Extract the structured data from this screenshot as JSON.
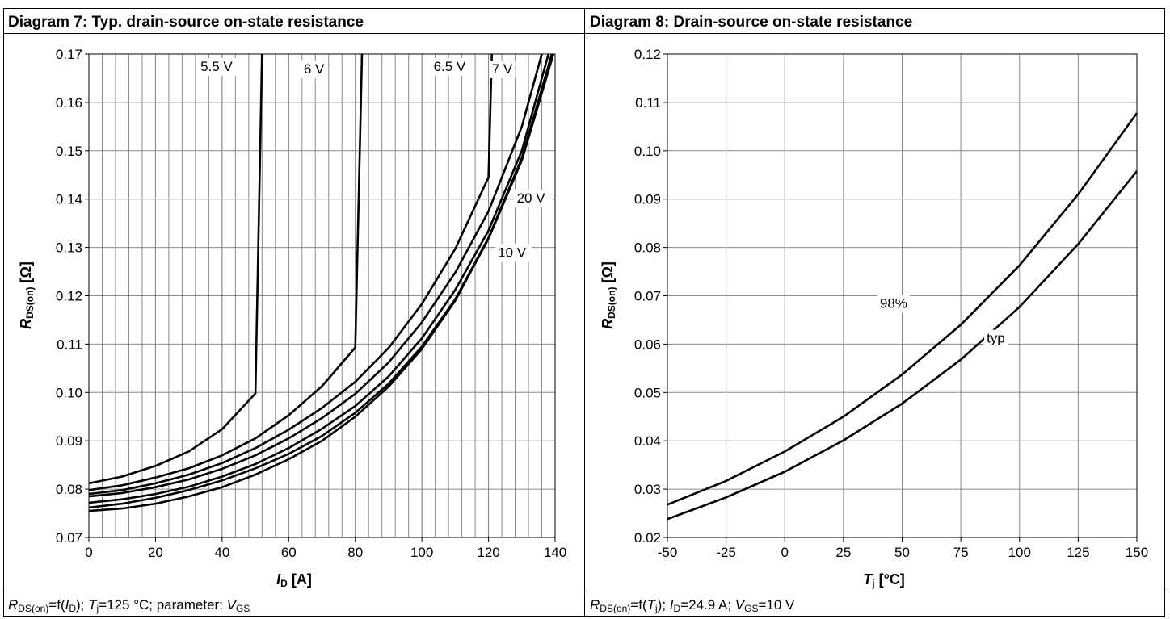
{
  "diagrams": [
    {
      "title": "Diagram 7: Typ. drain-source on-state resistance",
      "caption": "R_DS(on)=f(I_D); T_j=125 °C; parameter: V_GS",
      "caption_parts": {
        "a": "R",
        "a_sub": "DS(on)",
        "b": "=f(",
        "c": "I",
        "c_sub": "D",
        "d": "); ",
        "e": "T",
        "e_sub": "j",
        "f": "=125 °C; parameter: ",
        "g": "V",
        "g_sub": "GS"
      },
      "xlabel": {
        "main": "I",
        "sub": "D",
        "unit": " [A]"
      },
      "ylabel": {
        "main": "R",
        "sub": "DS(on)",
        "unit": " [Ω]"
      }
    },
    {
      "title": "Diagram 8: Drain-source on-state resistance",
      "caption": "R_DS(on)=f(T_j); I_D=24.9 A; V_GS=10 V",
      "caption_parts": {
        "a": "R",
        "a_sub": "DS(on)",
        "b": "=f(",
        "c": "T",
        "c_sub": "j",
        "d": "); ",
        "e": "I",
        "e_sub": "D",
        "f": "=24.9 A; ",
        "g": "V",
        "g_sub": "GS",
        "h": "=10 V"
      },
      "xlabel": {
        "main": "T",
        "sub": "j",
        "unit": " [°C]"
      },
      "ylabel": {
        "main": "R",
        "sub": "DS(on)",
        "unit": " [Ω]"
      }
    }
  ],
  "chart_data": [
    {
      "type": "line",
      "title": "Diagram 7: Typ. drain-source on-state resistance",
      "xlabel": "I_D [A]",
      "ylabel": "R_DS(on) [Ω]",
      "xlim": [
        0,
        140
      ],
      "ylim": [
        0.07,
        0.17
      ],
      "xticks": [
        "0",
        "20",
        "40",
        "60",
        "80",
        "100",
        "120",
        "140"
      ],
      "yticks": [
        "0.07",
        "0.08",
        "0.09",
        "0.10",
        "0.11",
        "0.12",
        "0.13",
        "0.14",
        "0.15",
        "0.16",
        "0.17"
      ],
      "grid": true,
      "minor_x_step": 4,
      "series": [
        {
          "name": "5.5 V",
          "x": [
            0,
            10,
            20,
            30,
            40,
            50,
            52
          ],
          "y": [
            0.0812,
            0.0826,
            0.0848,
            0.0878,
            0.0924,
            0.0998,
            0.17
          ]
        },
        {
          "name": "6 V",
          "x": [
            0,
            10,
            20,
            30,
            40,
            50,
            60,
            70,
            80,
            82
          ],
          "y": [
            0.0798,
            0.0808,
            0.0824,
            0.0843,
            0.087,
            0.0905,
            0.0953,
            0.1013,
            0.1093,
            0.17
          ]
        },
        {
          "name": "6.5 V",
          "x": [
            0,
            10,
            20,
            30,
            40,
            50,
            60,
            70,
            80,
            90,
            100,
            110,
            120,
            121
          ],
          "y": [
            0.079,
            0.0798,
            0.0812,
            0.083,
            0.0854,
            0.0885,
            0.0923,
            0.0968,
            0.1022,
            0.1092,
            0.1183,
            0.1297,
            0.1445,
            0.17
          ]
        },
        {
          "name": "7 V",
          "x": [
            0,
            10,
            20,
            30,
            40,
            50,
            60,
            70,
            80,
            90,
            100,
            110,
            120,
            130,
            136
          ],
          "y": [
            0.0785,
            0.0792,
            0.0804,
            0.082,
            0.0842,
            0.087,
            0.0905,
            0.0947,
            0.0997,
            0.1062,
            0.1145,
            0.1248,
            0.1375,
            0.155,
            0.17
          ]
        },
        {
          "name": "",
          "x": [
            0,
            10,
            20,
            30,
            40,
            50,
            60,
            70,
            80,
            90,
            100,
            110,
            120,
            130,
            138
          ],
          "y": [
            0.0772,
            0.0779,
            0.079,
            0.0805,
            0.0826,
            0.0852,
            0.0885,
            0.0925,
            0.0972,
            0.1033,
            0.1112,
            0.1212,
            0.1335,
            0.15,
            0.17
          ]
        },
        {
          "name": "20 V",
          "x": [
            0,
            10,
            20,
            30,
            40,
            50,
            60,
            70,
            80,
            90,
            100,
            110,
            120,
            130,
            139
          ],
          "y": [
            0.0762,
            0.077,
            0.0782,
            0.0798,
            0.0818,
            0.0843,
            0.0873,
            0.091,
            0.0958,
            0.1018,
            0.1095,
            0.1193,
            0.132,
            0.1485,
            0.17
          ]
        },
        {
          "name": "10 V",
          "x": [
            0,
            10,
            20,
            30,
            40,
            50,
            60,
            70,
            80,
            90,
            100,
            110,
            120,
            130,
            139.5
          ],
          "y": [
            0.0755,
            0.076,
            0.077,
            0.0785,
            0.0804,
            0.083,
            0.0862,
            0.09,
            0.095,
            0.1012,
            0.109,
            0.119,
            0.1318,
            0.148,
            0.17
          ]
        }
      ],
      "curve_labels": [
        "5.5 V",
        "6 V",
        "6.5 V",
        "7 V",
        "20 V",
        "10 V"
      ]
    },
    {
      "type": "line",
      "title": "Diagram 8: Drain-source on-state resistance",
      "xlabel": "T_j [°C]",
      "ylabel": "R_DS(on) [Ω]",
      "xlim": [
        -50,
        150
      ],
      "ylim": [
        0.02,
        0.12
      ],
      "xticks": [
        "-50",
        "-25",
        "0",
        "25",
        "50",
        "75",
        "100",
        "125",
        "150"
      ],
      "yticks": [
        "0.02",
        "0.03",
        "0.04",
        "0.05",
        "0.06",
        "0.07",
        "0.08",
        "0.09",
        "0.10",
        "0.11",
        "0.12"
      ],
      "grid": true,
      "series": [
        {
          "name": "98%",
          "x": [
            -50,
            -25,
            0,
            25,
            50,
            75,
            100,
            125,
            150
          ],
          "y": [
            0.0268,
            0.0317,
            0.0378,
            0.045,
            0.0537,
            0.064,
            0.0763,
            0.091,
            0.1078
          ]
        },
        {
          "name": "typ",
          "x": [
            -50,
            -25,
            0,
            25,
            50,
            75,
            100,
            125,
            150
          ],
          "y": [
            0.0238,
            0.0283,
            0.0336,
            0.0401,
            0.0477,
            0.0568,
            0.0677,
            0.0807,
            0.0958
          ]
        }
      ],
      "curve_labels": [
        "98%",
        "typ"
      ]
    }
  ]
}
